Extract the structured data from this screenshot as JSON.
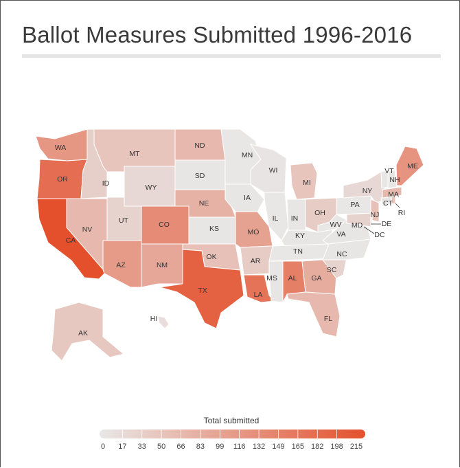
{
  "title": "Ballot Measures Submitted 1996-2016",
  "legend": {
    "title": "Total submitted",
    "ticks": [
      "0",
      "17",
      "33",
      "50",
      "66",
      "83",
      "99",
      "116",
      "132",
      "149",
      "165",
      "182",
      "198",
      "215"
    ],
    "color_low": "#e8e8e8",
    "color_high": "#e4502c"
  },
  "map_data": {
    "scale_max": 215,
    "states": [
      {
        "code": "WA",
        "value": 115
      },
      {
        "code": "OR",
        "value": 172
      },
      {
        "code": "CA",
        "value": 215
      },
      {
        "code": "ID",
        "value": 36
      },
      {
        "code": "NV",
        "value": 66
      },
      {
        "code": "UT",
        "value": 30
      },
      {
        "code": "AZ",
        "value": 110
      },
      {
        "code": "MT",
        "value": 50
      },
      {
        "code": "WY",
        "value": 22
      },
      {
        "code": "CO",
        "value": 132
      },
      {
        "code": "NM",
        "value": 92
      },
      {
        "code": "ND",
        "value": 66
      },
      {
        "code": "SD",
        "value": 4
      },
      {
        "code": "NE",
        "value": 76
      },
      {
        "code": "KS",
        "value": 3
      },
      {
        "code": "OK",
        "value": 55
      },
      {
        "code": "TX",
        "value": 190
      },
      {
        "code": "MN",
        "value": 2
      },
      {
        "code": "IA",
        "value": 3
      },
      {
        "code": "MO",
        "value": 99
      },
      {
        "code": "AR",
        "value": 40
      },
      {
        "code": "LA",
        "value": 165
      },
      {
        "code": "WI",
        "value": 5
      },
      {
        "code": "IL",
        "value": 2
      },
      {
        "code": "MI",
        "value": 50
      },
      {
        "code": "IN",
        "value": 3
      },
      {
        "code": "OH",
        "value": 40
      },
      {
        "code": "KY",
        "value": 3
      },
      {
        "code": "TN",
        "value": 2
      },
      {
        "code": "MS",
        "value": 3
      },
      {
        "code": "AL",
        "value": 149
      },
      {
        "code": "GA",
        "value": 83
      },
      {
        "code": "FL",
        "value": 66
      },
      {
        "code": "SC",
        "value": 30
      },
      {
        "code": "NC",
        "value": 3
      },
      {
        "code": "VA",
        "value": 3
      },
      {
        "code": "WV",
        "value": 2
      },
      {
        "code": "PA",
        "value": 2
      },
      {
        "code": "NY",
        "value": 22
      },
      {
        "code": "NJ",
        "value": 55
      },
      {
        "code": "DE",
        "value": 2
      },
      {
        "code": "MD",
        "value": 30
      },
      {
        "code": "DC",
        "value": 3
      },
      {
        "code": "CT",
        "value": 3
      },
      {
        "code": "RI",
        "value": 50
      },
      {
        "code": "MA",
        "value": 66
      },
      {
        "code": "VT",
        "value": 2
      },
      {
        "code": "NH",
        "value": 3
      },
      {
        "code": "ME",
        "value": 120
      },
      {
        "code": "AK",
        "value": 45
      },
      {
        "code": "HI",
        "value": 15
      }
    ]
  }
}
